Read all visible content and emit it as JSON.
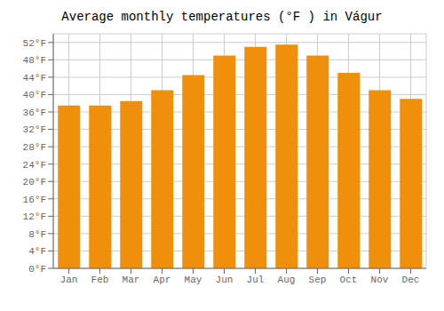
{
  "chart_data": {
    "type": "bar",
    "title": "Average monthly temperatures (°F ) in Vágur",
    "categories": [
      "Jan",
      "Feb",
      "Mar",
      "Apr",
      "May",
      "Jun",
      "Jul",
      "Aug",
      "Sep",
      "Oct",
      "Nov",
      "Dec"
    ],
    "values": [
      37.5,
      37.5,
      38.5,
      41.0,
      44.5,
      49.0,
      51.0,
      51.5,
      49.0,
      45.0,
      41.0,
      39.0
    ],
    "color": "#F0900A",
    "ylim": [
      0,
      54
    ],
    "yticks": [
      {
        "value": 0,
        "label": "0°F"
      },
      {
        "value": 4,
        "label": "4°F"
      },
      {
        "value": 8,
        "label": "8°F"
      },
      {
        "value": 12,
        "label": "12°F"
      },
      {
        "value": 16,
        "label": "16°F"
      },
      {
        "value": 20,
        "label": "20°F"
      },
      {
        "value": 24,
        "label": "24°F"
      },
      {
        "value": 28,
        "label": "28°F"
      },
      {
        "value": 32,
        "label": "32°F"
      },
      {
        "value": 36,
        "label": "36°F"
      },
      {
        "value": 40,
        "label": "40°F"
      },
      {
        "value": 44,
        "label": "44°F"
      },
      {
        "value": 48,
        "label": "48°F"
      },
      {
        "value": 52,
        "label": "52°F"
      }
    ],
    "grid": true
  }
}
